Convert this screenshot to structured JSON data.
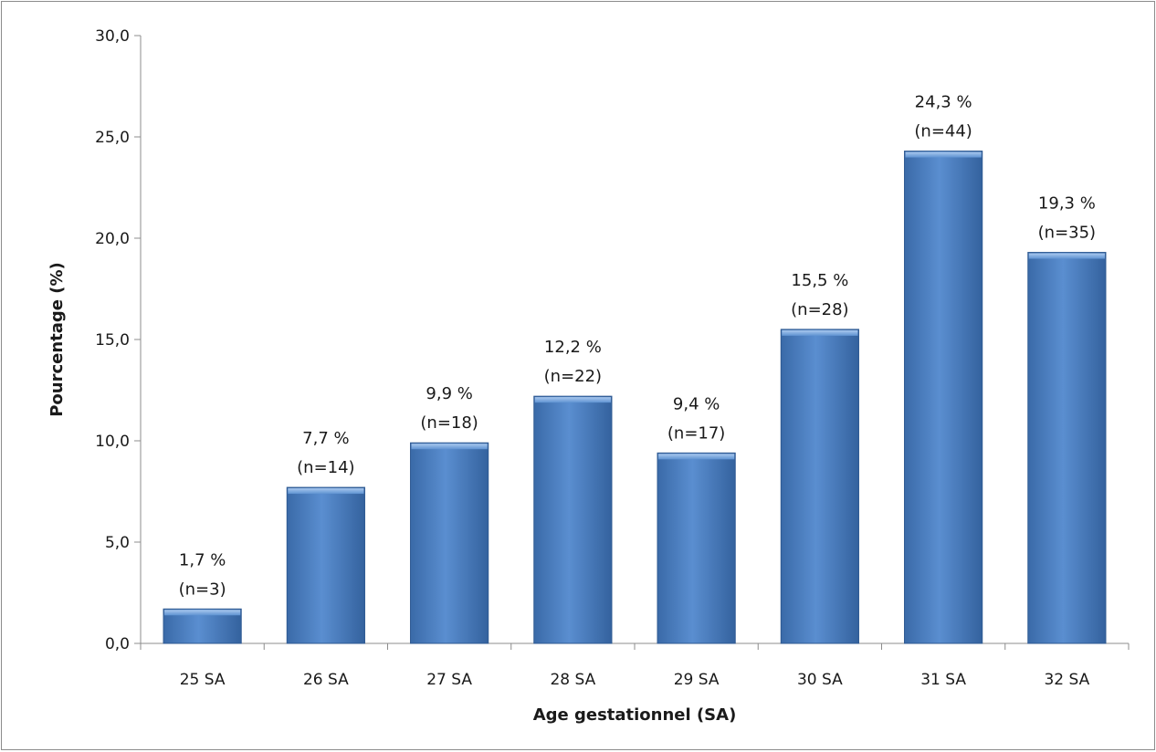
{
  "chart_data": {
    "type": "bar",
    "categories": [
      "25 SA",
      "26 SA",
      "27 SA",
      "28 SA",
      "29 SA",
      "30 SA",
      "31 SA",
      "32 SA"
    ],
    "values": [
      1.7,
      7.7,
      9.9,
      12.2,
      9.4,
      15.5,
      24.3,
      19.3
    ],
    "percent_labels": [
      "1,7 %",
      "7,7 %",
      "9,9 %",
      "12,2 %",
      "9,4 %",
      "15,5 %",
      "24,3 %",
      "19,3 %"
    ],
    "count_labels": [
      "(n=3)",
      "(n=14)",
      "(n=18)",
      "(n=22)",
      "(n=17)",
      "(n=28)",
      "(n=44)",
      "(n=35)"
    ],
    "xlabel": "Age gestationnel (SA)",
    "ylabel": "Pourcentage (%)",
    "ylim": [
      0,
      30
    ],
    "yticks": [
      0,
      5,
      10,
      15,
      20,
      25,
      30
    ],
    "ytick_labels": [
      "0,0",
      "5,0",
      "10,0",
      "15,0",
      "20,0",
      "25,0",
      "30,0"
    ],
    "bar_color": "#4a7ebf",
    "grid": false,
    "legend": "none"
  }
}
